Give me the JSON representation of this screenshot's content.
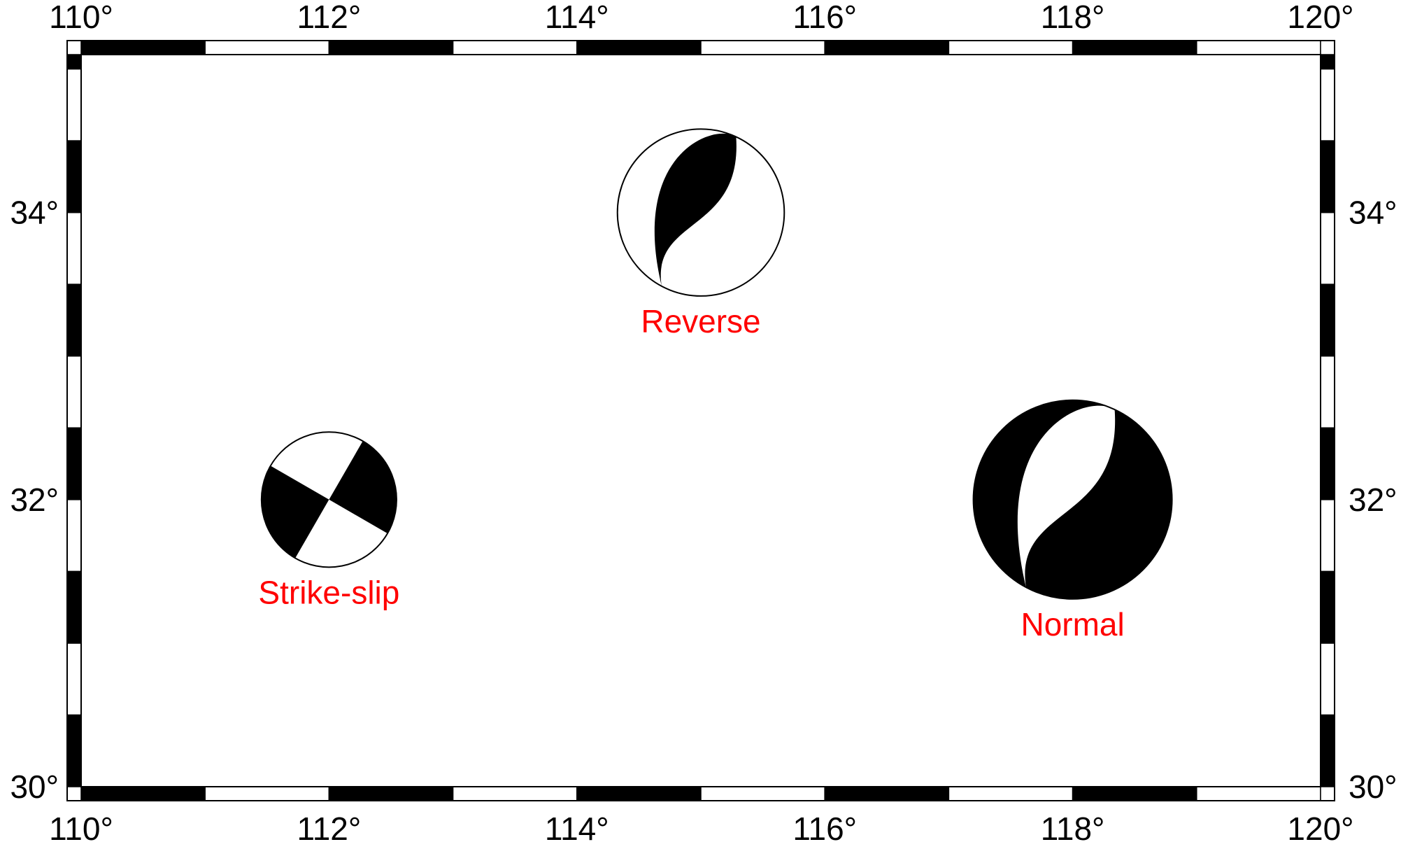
{
  "map": {
    "region": {
      "lon_min": 110,
      "lon_max": 120,
      "lat_min": 30,
      "lat_max": 35.1
    },
    "frame_style": "fancy checkerboard",
    "frame_colors": {
      "dark": "#000000",
      "light": "#ffffff"
    },
    "lon_ticks": [
      {
        "value": 110,
        "label": "110°"
      },
      {
        "value": 112,
        "label": "112°"
      },
      {
        "value": 114,
        "label": "114°"
      },
      {
        "value": 116,
        "label": "116°"
      },
      {
        "value": 118,
        "label": "118°"
      },
      {
        "value": 120,
        "label": "120°"
      }
    ],
    "lat_ticks": [
      {
        "value": 30,
        "label": "30°"
      },
      {
        "value": 32,
        "label": "32°"
      },
      {
        "value": 34,
        "label": "34°"
      }
    ],
    "label_color": "#ff0000",
    "events": [
      {
        "id": "strike-slip",
        "label": "Strike-slip",
        "lon": 112,
        "lat": 32,
        "type": "strike-slip",
        "relative_size": 0.68
      },
      {
        "id": "reverse",
        "label": "Reverse",
        "lon": 115,
        "lat": 34,
        "type": "reverse",
        "relative_size": 0.84
      },
      {
        "id": "normal",
        "label": "Normal",
        "lon": 118,
        "lat": 32,
        "type": "normal",
        "relative_size": 1.0
      }
    ]
  }
}
